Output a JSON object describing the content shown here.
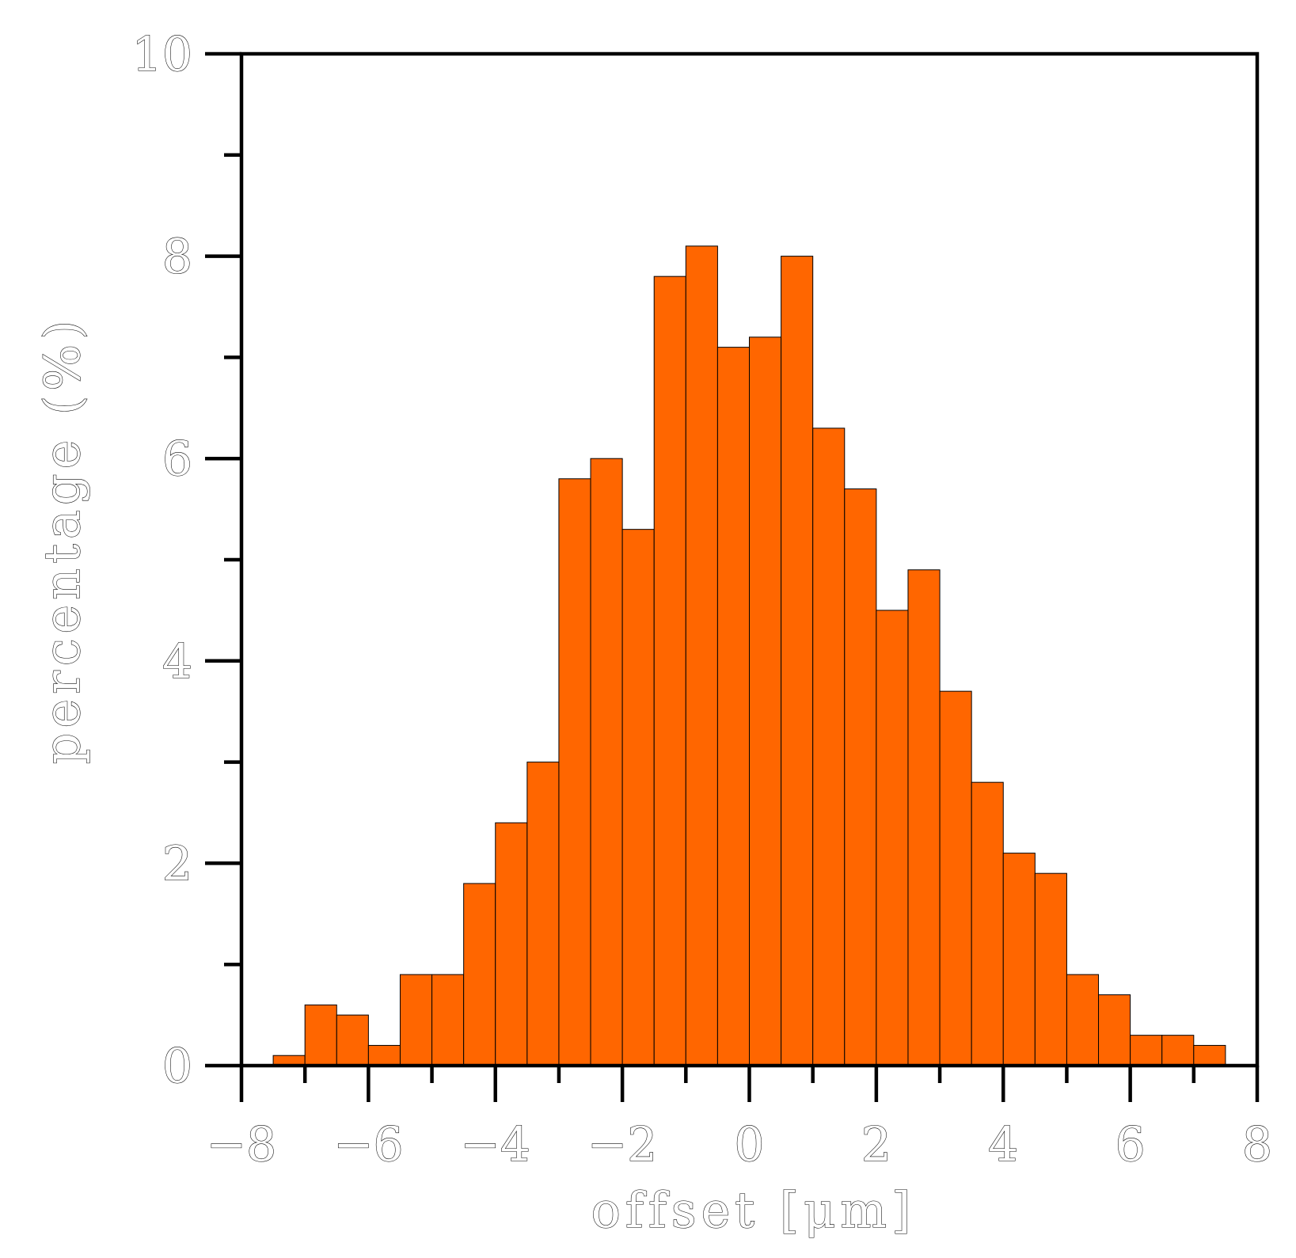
{
  "chart_data": {
    "type": "bar",
    "title": "",
    "xlabel": "offset [μm]",
    "ylabel": "percentage (%)",
    "xlim": [
      -8,
      8
    ],
    "ylim": [
      0,
      10
    ],
    "x_ticks": [
      "−8",
      "−6",
      "−4",
      "−2",
      "0",
      "2",
      "4",
      "6",
      "8"
    ],
    "y_ticks": [
      "0",
      "2",
      "4",
      "6",
      "8",
      "10"
    ],
    "bin_width": 0.5,
    "bin_left_edges": [
      -7.5,
      -7.0,
      -6.5,
      -6.0,
      -5.5,
      -5.0,
      -4.5,
      -4.0,
      -3.5,
      -3.0,
      -2.5,
      -2.0,
      -1.5,
      -1.0,
      -0.5,
      0.0,
      0.5,
      1.0,
      1.5,
      2.0,
      2.5,
      3.0,
      3.5,
      4.0,
      4.5,
      5.0,
      5.5,
      6.0,
      6.5,
      7.0
    ],
    "values": [
      0.1,
      0.6,
      0.5,
      0.2,
      0.9,
      0.9,
      1.8,
      2.4,
      3.0,
      5.8,
      6.0,
      5.3,
      7.8,
      8.1,
      7.1,
      7.2,
      8.0,
      6.3,
      5.7,
      4.5,
      4.9,
      3.7,
      2.8,
      2.1,
      1.9,
      0.9,
      0.7,
      0.3,
      0.3,
      0.2
    ],
    "bar_color": "#FF6600",
    "bar_edge_color": "#000000",
    "grid": false,
    "legend": "none"
  }
}
